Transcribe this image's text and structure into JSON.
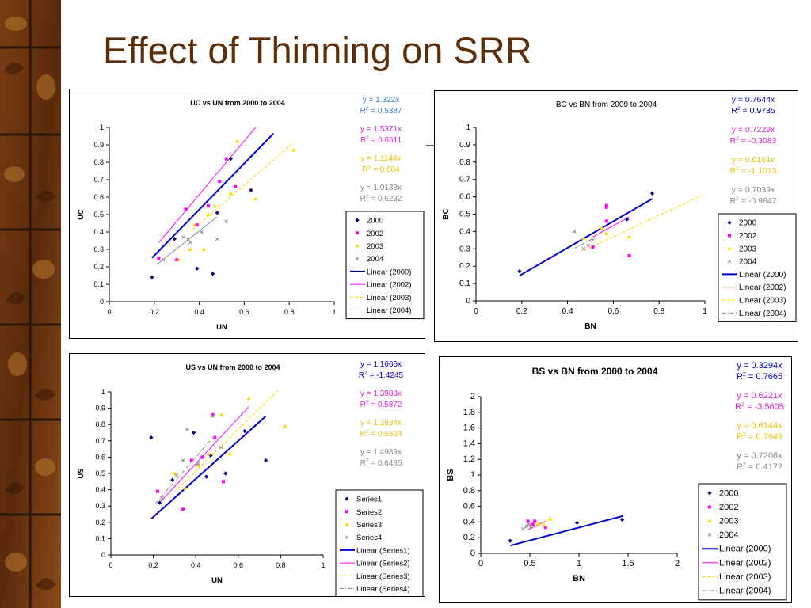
{
  "slide": {
    "title": "Effect of Thinning on SRR"
  },
  "chart_data": [
    {
      "type": "scatter",
      "title": "UC vs UN from 2000 to 2004",
      "xlabel": "UN",
      "ylabel": "UC",
      "xlim": [
        0,
        1
      ],
      "ylim": [
        0,
        1
      ],
      "xticks": [
        "0",
        "0.2",
        "0.4",
        "0.6",
        "0.8",
        "1"
      ],
      "yticks": [
        "0",
        "0.1",
        "0.2",
        "0.3",
        "0.4",
        "0.5",
        "0.6",
        "0.7",
        "0.8",
        "0.9",
        "1"
      ],
      "legend": "right",
      "series": [
        {
          "name": "2000",
          "color": "#000080",
          "marker": "diamond",
          "points": [
            [
              0.19,
              0.14
            ],
            [
              0.29,
              0.36
            ],
            [
              0.39,
              0.19
            ],
            [
              0.46,
              0.16
            ],
            [
              0.48,
              0.51
            ],
            [
              0.54,
              0.82
            ],
            [
              0.63,
              0.64
            ]
          ]
        },
        {
          "name": "2002",
          "color": "#ff00ff",
          "marker": "square",
          "points": [
            [
              0.22,
              0.25
            ],
            [
              0.3,
              0.24
            ],
            [
              0.34,
              0.53
            ],
            [
              0.39,
              0.44
            ],
            [
              0.44,
              0.55
            ],
            [
              0.49,
              0.69
            ],
            [
              0.52,
              0.82
            ],
            [
              0.56,
              0.66
            ]
          ]
        },
        {
          "name": "2003",
          "color": "#ffd700",
          "marker": "triangle",
          "points": [
            [
              0.31,
              0.24
            ],
            [
              0.36,
              0.3
            ],
            [
              0.38,
              0.44
            ],
            [
              0.42,
              0.3
            ],
            [
              0.44,
              0.5
            ],
            [
              0.47,
              0.55
            ],
            [
              0.54,
              0.62
            ],
            [
              0.57,
              0.92
            ],
            [
              0.65,
              0.59
            ],
            [
              0.82,
              0.87
            ]
          ]
        },
        {
          "name": "2004",
          "color": "#888888",
          "marker": "x",
          "points": [
            [
              0.24,
              0.24
            ],
            [
              0.33,
              0.37
            ],
            [
              0.35,
              0.36
            ],
            [
              0.36,
              0.34
            ],
            [
              0.41,
              0.4
            ],
            [
              0.48,
              0.36
            ],
            [
              0.52,
              0.46
            ]
          ]
        }
      ],
      "trendlines": [
        {
          "name": "Linear (2000)",
          "color": "#0000cc",
          "style": "solid",
          "width": 2,
          "x": [
            0.19,
            0.73
          ]
        },
        {
          "name": "Linear (2002)",
          "color": "#ff00ff",
          "style": "solid",
          "width": 1,
          "x": [
            0.22,
            0.65
          ]
        },
        {
          "name": "Linear (2003)",
          "color": "#ffd700",
          "style": "dashed",
          "width": 1,
          "x": [
            0.37,
            0.82
          ]
        },
        {
          "name": "Linear (2004)",
          "color": "#888888",
          "style": "solid",
          "width": 1,
          "x": [
            0.21,
            0.48
          ]
        }
      ],
      "equations": [
        {
          "eq": "y = 1.322x",
          "r2": "0.5387",
          "color": "#3a78d8"
        },
        {
          "eq": "y = 1.5371x",
          "r2": "0.6511",
          "color": "#e020e0"
        },
        {
          "eq": "y = 1.1144x",
          "r2": "0.604",
          "color": "#e8c000"
        },
        {
          "eq": "y = 1.0138x",
          "r2": "0.6232",
          "color": "#888888"
        }
      ]
    },
    {
      "type": "scatter",
      "title": "BC vs BN from 2000 to 2004",
      "xlabel": "BN",
      "ylabel": "BC",
      "xlim": [
        0,
        1
      ],
      "ylim": [
        0,
        1
      ],
      "xticks": [
        "0",
        "0.2",
        "0.4",
        "0.6",
        "0.8",
        "1"
      ],
      "yticks": [
        "0",
        "0.1",
        "0.2",
        "0.3",
        "0.4",
        "0.5",
        "0.6",
        "0.7",
        "0.8",
        "0.9",
        "1"
      ],
      "legend": "right",
      "series": [
        {
          "name": "2000",
          "color": "#000080",
          "marker": "diamond",
          "points": [
            [
              0.19,
              0.17
            ],
            [
              0.66,
              0.47
            ],
            [
              0.77,
              0.62
            ]
          ]
        },
        {
          "name": "2002",
          "color": "#ff00ff",
          "marker": "square",
          "points": [
            [
              0.51,
              0.31
            ],
            [
              0.57,
              0.55
            ],
            [
              0.57,
              0.54
            ],
            [
              0.57,
              0.46
            ],
            [
              0.67,
              0.26
            ]
          ]
        },
        {
          "name": "2003",
          "color": "#ffd700",
          "marker": "triangle",
          "points": [
            [
              0.47,
              0.36
            ],
            [
              0.55,
              0.42
            ],
            [
              0.57,
              0.39
            ],
            [
              0.67,
              0.37
            ]
          ]
        },
        {
          "name": "2004",
          "color": "#888888",
          "marker": "x",
          "points": [
            [
              0.43,
              0.4
            ],
            [
              0.47,
              0.3
            ],
            [
              0.49,
              0.32
            ],
            [
              0.51,
              0.35
            ]
          ]
        }
      ],
      "trendlines": [
        {
          "name": "Linear (2000)",
          "color": "#0000cc",
          "style": "solid",
          "width": 2,
          "x": [
            0.19,
            0.77
          ]
        },
        {
          "name": "Linear (2002)",
          "color": "#ff00ff",
          "style": "solid",
          "width": 1,
          "x": [
            0.51,
            0.67
          ]
        },
        {
          "name": "Linear (2003)",
          "color": "#ffd700",
          "style": "dashed",
          "width": 1,
          "x": [
            0.47,
            1.0
          ]
        },
        {
          "name": "Linear (2004)",
          "color": "#888888",
          "style": "dashdot",
          "width": 1,
          "x": [
            0.43,
            0.51
          ]
        }
      ],
      "equations": [
        {
          "eq": "y = 0.7644x",
          "r2": "0.9735",
          "color": "#0000cc"
        },
        {
          "eq": "y = 0.7229x",
          "r2": "-0.3083",
          "color": "#e020e0"
        },
        {
          "eq": "y = 0.6161x",
          "r2": "-1.1013",
          "color": "#e8c000"
        },
        {
          "eq": "y = 0.7039x",
          "r2": "-0.9847",
          "color": "#888888"
        }
      ]
    },
    {
      "type": "scatter",
      "title": "US vs UN from 2000 to 2004",
      "xlabel": "UN",
      "ylabel": "US",
      "xlim": [
        0,
        1
      ],
      "ylim": [
        0,
        1
      ],
      "xticks": [
        "0",
        "0.2",
        "0.4",
        "0.6",
        "0.8",
        "1"
      ],
      "yticks": [
        "0",
        "0.1",
        "0.2",
        "0.3",
        "0.4",
        "0.5",
        "0.6",
        "0.7",
        "0.8",
        "0.9",
        "1"
      ],
      "legend": "right",
      "series": [
        {
          "name": "Series1",
          "color": "#000080",
          "marker": "diamond",
          "points": [
            [
              0.19,
              0.72
            ],
            [
              0.23,
              0.32
            ],
            [
              0.29,
              0.46
            ],
            [
              0.39,
              0.75
            ],
            [
              0.45,
              0.48
            ],
            [
              0.47,
              0.61
            ],
            [
              0.54,
              0.5
            ],
            [
              0.63,
              0.76
            ],
            [
              0.73,
              0.58
            ]
          ]
        },
        {
          "name": "Series2",
          "color": "#ff00ff",
          "marker": "square",
          "points": [
            [
              0.22,
              0.39
            ],
            [
              0.34,
              0.28
            ],
            [
              0.38,
              0.58
            ],
            [
              0.43,
              0.6
            ],
            [
              0.48,
              0.86
            ],
            [
              0.49,
              0.72
            ],
            [
              0.53,
              0.45
            ]
          ]
        },
        {
          "name": "Series3",
          "color": "#ffd700",
          "marker": "triangle",
          "points": [
            [
              0.3,
              0.5
            ],
            [
              0.35,
              0.41
            ],
            [
              0.41,
              0.55
            ],
            [
              0.46,
              0.62
            ],
            [
              0.52,
              0.86
            ],
            [
              0.56,
              0.62
            ],
            [
              0.65,
              0.96
            ],
            [
              0.82,
              0.79
            ]
          ]
        },
        {
          "name": "Series4",
          "color": "#888888",
          "marker": "x",
          "points": [
            [
              0.24,
              0.35
            ],
            [
              0.31,
              0.49
            ],
            [
              0.34,
              0.58
            ],
            [
              0.36,
              0.77
            ],
            [
              0.41,
              0.56
            ],
            [
              0.48,
              0.85
            ],
            [
              0.52,
              0.66
            ]
          ]
        }
      ],
      "trendlines": [
        {
          "name": "Linear (Series1)",
          "color": "#0000cc",
          "style": "solid",
          "width": 2,
          "x": [
            0.19,
            0.73
          ]
        },
        {
          "name": "Linear (Series2)",
          "color": "#ff00ff",
          "style": "solid",
          "width": 1,
          "x": [
            0.22,
            0.65
          ]
        },
        {
          "name": "Linear (Series3)",
          "color": "#ffd700",
          "style": "dashed",
          "width": 1,
          "x": [
            0.3,
            0.8
          ]
        },
        {
          "name": "Linear (Series4)",
          "color": "#888888",
          "style": "dashdot",
          "width": 1,
          "x": [
            0.21,
            0.48
          ]
        }
      ],
      "equations": [
        {
          "eq": "y = 1.1665x",
          "r2": "-1.4245",
          "color": "#0000cc"
        },
        {
          "eq": "y = 1.3988x",
          "r2": "0.5872",
          "color": "#e020e0"
        },
        {
          "eq": "y = 1.2834x",
          "r2": "0.5524",
          "color": "#e8c000"
        },
        {
          "eq": "y = 1.4989x",
          "r2": "0.6485",
          "color": "#888888"
        }
      ]
    },
    {
      "type": "scatter",
      "title": "BS vs BN from 2000 to 2004",
      "xlabel": "BN",
      "ylabel": "BS",
      "xlim": [
        0,
        2
      ],
      "ylim": [
        0,
        2
      ],
      "xticks": [
        "0",
        "0.5",
        "1",
        "1.5",
        "2"
      ],
      "yticks": [
        "0",
        "0.2",
        "0.4",
        "0.6",
        "0.8",
        "1",
        "1.2",
        "1.4",
        "1.6",
        "1.8",
        "2"
      ],
      "legend": "right",
      "series": [
        {
          "name": "2000",
          "color": "#000080",
          "marker": "diamond",
          "points": [
            [
              0.3,
              0.16
            ],
            [
              0.98,
              0.39
            ],
            [
              1.44,
              0.43
            ]
          ]
        },
        {
          "name": "2002",
          "color": "#ff00ff",
          "marker": "square",
          "points": [
            [
              0.48,
              0.41
            ],
            [
              0.53,
              0.37
            ],
            [
              0.55,
              0.41
            ],
            [
              0.66,
              0.33
            ]
          ]
        },
        {
          "name": "2003",
          "color": "#ffd700",
          "marker": "triangle",
          "points": [
            [
              0.58,
              0.38
            ],
            [
              0.64,
              0.36
            ],
            [
              0.71,
              0.44
            ]
          ]
        },
        {
          "name": "2004",
          "color": "#888888",
          "marker": "x",
          "points": [
            [
              0.43,
              0.31
            ],
            [
              0.47,
              0.35
            ],
            [
              0.49,
              0.37
            ],
            [
              0.51,
              0.34
            ]
          ]
        }
      ],
      "trendlines": [
        {
          "name": "Linear (2000)",
          "color": "#0000cc",
          "style": "solid",
          "width": 2,
          "x": [
            0.3,
            1.45
          ]
        },
        {
          "name": "Linear (2002)",
          "color": "#ff00ff",
          "style": "solid",
          "width": 1,
          "x": [
            0.48,
            0.66
          ]
        },
        {
          "name": "Linear (2003)",
          "color": "#ffd700",
          "style": "dashed",
          "width": 1,
          "x": [
            0.58,
            0.72
          ]
        },
        {
          "name": "Linear (2004)",
          "color": "#888888",
          "style": "dashdot",
          "width": 1,
          "x": [
            0.43,
            0.51
          ]
        }
      ],
      "equations": [
        {
          "eq": "y = 0.3294x",
          "r2": "0.7665",
          "color": "#0000cc"
        },
        {
          "eq": "y = 0.6221x",
          "r2": "-3.5605",
          "color": "#e020e0"
        },
        {
          "eq": "y = 0.6144x",
          "r2": "0.7949",
          "color": "#e8c000"
        },
        {
          "eq": "y = 0.7206x",
          "r2": "0.4172",
          "color": "#888888"
        }
      ]
    }
  ]
}
